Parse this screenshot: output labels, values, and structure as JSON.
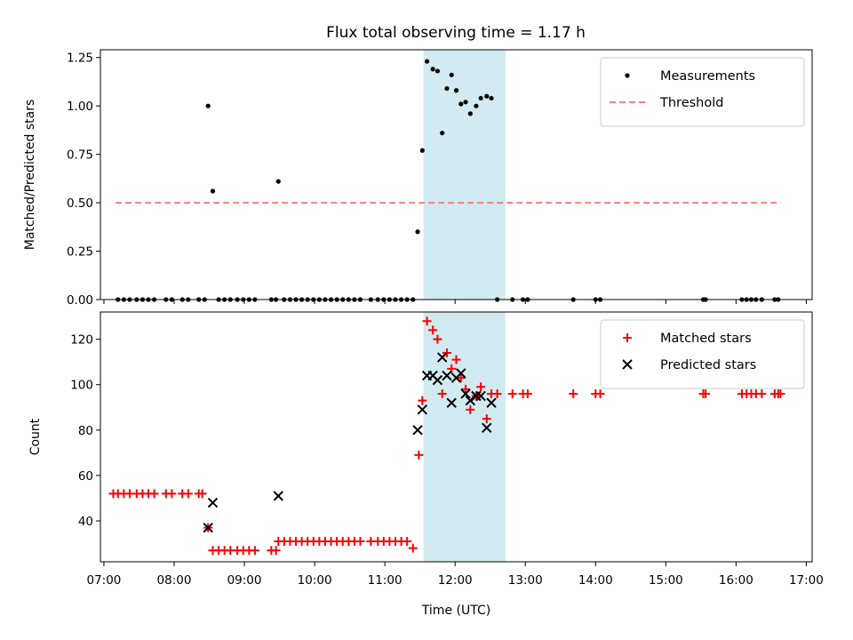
{
  "chart_data": [
    {
      "type": "scatter",
      "title": "Flux total observing time = 1.17 h",
      "xlabel": "",
      "ylabel": "Matched/Predicted stars",
      "ylim": [
        0,
        1.29
      ],
      "yticks": [
        "0.00",
        "0.25",
        "0.50",
        "0.75",
        "1.00",
        "1.25"
      ],
      "ytick_values": [
        0,
        0.25,
        0.5,
        0.75,
        1.0,
        1.25
      ],
      "shaded_region": {
        "x": [
          "11:33",
          "12:43"
        ],
        "color": "#add8e6"
      },
      "legend": {
        "placement": "top-right",
        "entries": [
          "Measurements",
          "Threshold"
        ]
      },
      "series": [
        {
          "name": "Measurements",
          "marker": "dot",
          "color": "#000000",
          "points": [
            [
              "07:12",
              0
            ],
            [
              "07:17",
              0
            ],
            [
              "07:22",
              0
            ],
            [
              "07:28",
              0
            ],
            [
              "07:33",
              0
            ],
            [
              "07:38",
              0
            ],
            [
              "07:43",
              0
            ],
            [
              "07:53",
              0
            ],
            [
              "07:58",
              0
            ],
            [
              "08:07",
              0
            ],
            [
              "08:12",
              0
            ],
            [
              "08:21",
              0
            ],
            [
              "08:26",
              0
            ],
            [
              "08:29",
              1.0
            ],
            [
              "08:33",
              0.56
            ],
            [
              "08:38",
              0
            ],
            [
              "08:43",
              0
            ],
            [
              "08:48",
              0
            ],
            [
              "08:54",
              0
            ],
            [
              "08:59",
              0
            ],
            [
              "09:04",
              0
            ],
            [
              "09:09",
              0
            ],
            [
              "09:23",
              0
            ],
            [
              "09:27",
              0
            ],
            [
              "09:29",
              0.61
            ],
            [
              "09:34",
              0
            ],
            [
              "09:39",
              0
            ],
            [
              "09:44",
              0
            ],
            [
              "09:49",
              0
            ],
            [
              "09:54",
              0
            ],
            [
              "09:59",
              0
            ],
            [
              "10:04",
              0
            ],
            [
              "10:09",
              0
            ],
            [
              "10:14",
              0
            ],
            [
              "10:19",
              0
            ],
            [
              "10:24",
              0
            ],
            [
              "10:29",
              0
            ],
            [
              "10:34",
              0
            ],
            [
              "10:39",
              0
            ],
            [
              "10:48",
              0
            ],
            [
              "10:54",
              0
            ],
            [
              "10:59",
              0
            ],
            [
              "11:04",
              0
            ],
            [
              "11:09",
              0
            ],
            [
              "11:14",
              0
            ],
            [
              "11:19",
              0
            ],
            [
              "11:24",
              0
            ],
            [
              "11:28",
              0.35
            ],
            [
              "11:32",
              0.77
            ],
            [
              "11:36",
              1.23
            ],
            [
              "11:41",
              1.19
            ],
            [
              "11:45",
              1.18
            ],
            [
              "11:49",
              0.86
            ],
            [
              "11:53",
              1.09
            ],
            [
              "11:57",
              1.16
            ],
            [
              "12:01",
              1.08
            ],
            [
              "12:05",
              1.01
            ],
            [
              "12:09",
              1.02
            ],
            [
              "12:13",
              0.96
            ],
            [
              "12:18",
              1.0
            ],
            [
              "12:22",
              1.04
            ],
            [
              "12:27",
              1.05
            ],
            [
              "12:31",
              1.04
            ],
            [
              "12:36",
              0
            ],
            [
              "12:49",
              0
            ],
            [
              "12:58",
              0
            ],
            [
              "13:02",
              0
            ],
            [
              "13:41",
              0
            ],
            [
              "14:00",
              0
            ],
            [
              "14:04",
              0
            ],
            [
              "15:32",
              0
            ],
            [
              "15:34",
              0
            ],
            [
              "16:05",
              0
            ],
            [
              "16:09",
              0
            ],
            [
              "16:13",
              0
            ],
            [
              "16:17",
              0
            ],
            [
              "16:22",
              0
            ],
            [
              "16:33",
              0
            ],
            [
              "16:36",
              0
            ]
          ]
        },
        {
          "name": "Threshold",
          "marker": "dashed-line",
          "color": "#ff7f7f",
          "points": [
            [
              "07:10",
              0.5
            ],
            [
              "16:38",
              0.5
            ]
          ]
        }
      ]
    },
    {
      "type": "scatter",
      "title": "",
      "xlabel": "Time (UTC)",
      "ylabel": "Count",
      "ylim": [
        22,
        132
      ],
      "yticks": [
        "40",
        "60",
        "80",
        "100",
        "120"
      ],
      "ytick_values": [
        40,
        60,
        80,
        100,
        120
      ],
      "xticks": [
        "07:00",
        "08:00",
        "09:00",
        "10:00",
        "11:00",
        "12:00",
        "13:00",
        "14:00",
        "15:00",
        "16:00",
        "17:00"
      ],
      "xlim": [
        "06:57",
        "17:05"
      ],
      "shaded_region": {
        "x": [
          "11:33",
          "12:43"
        ],
        "color": "#add8e6"
      },
      "legend": {
        "placement": "top-right",
        "entries": [
          "Matched stars",
          "Predicted stars"
        ]
      },
      "series": [
        {
          "name": "Matched stars",
          "marker": "plus",
          "color": "#ff0000",
          "points": [
            [
              "07:08",
              52
            ],
            [
              "07:12",
              52
            ],
            [
              "07:17",
              52
            ],
            [
              "07:22",
              52
            ],
            [
              "07:28",
              52
            ],
            [
              "07:33",
              52
            ],
            [
              "07:38",
              52
            ],
            [
              "07:43",
              52
            ],
            [
              "07:53",
              52
            ],
            [
              "07:58",
              52
            ],
            [
              "08:07",
              52
            ],
            [
              "08:12",
              52
            ],
            [
              "08:21",
              52
            ],
            [
              "08:24",
              52
            ],
            [
              "08:29",
              37
            ],
            [
              "08:33",
              27
            ],
            [
              "08:38",
              27
            ],
            [
              "08:43",
              27
            ],
            [
              "08:48",
              27
            ],
            [
              "08:54",
              27
            ],
            [
              "08:59",
              27
            ],
            [
              "09:04",
              27
            ],
            [
              "09:09",
              27
            ],
            [
              "09:23",
              27
            ],
            [
              "09:27",
              27
            ],
            [
              "09:29",
              31
            ],
            [
              "09:34",
              31
            ],
            [
              "09:39",
              31
            ],
            [
              "09:44",
              31
            ],
            [
              "09:49",
              31
            ],
            [
              "09:54",
              31
            ],
            [
              "09:59",
              31
            ],
            [
              "10:04",
              31
            ],
            [
              "10:09",
              31
            ],
            [
              "10:14",
              31
            ],
            [
              "10:19",
              31
            ],
            [
              "10:24",
              31
            ],
            [
              "10:29",
              31
            ],
            [
              "10:34",
              31
            ],
            [
              "10:39",
              31
            ],
            [
              "10:48",
              31
            ],
            [
              "10:54",
              31
            ],
            [
              "10:59",
              31
            ],
            [
              "11:04",
              31
            ],
            [
              "11:09",
              31
            ],
            [
              "11:14",
              31
            ],
            [
              "11:19",
              31
            ],
            [
              "11:24",
              28
            ],
            [
              "11:29",
              69
            ],
            [
              "11:32",
              93
            ],
            [
              "11:36",
              128
            ],
            [
              "11:41",
              124
            ],
            [
              "11:45",
              120
            ],
            [
              "11:49",
              96
            ],
            [
              "11:53",
              114
            ],
            [
              "11:57",
              107
            ],
            [
              "12:01",
              111
            ],
            [
              "12:05",
              103
            ],
            [
              "12:09",
              98
            ],
            [
              "12:13",
              89
            ],
            [
              "12:18",
              95
            ],
            [
              "12:22",
              99
            ],
            [
              "12:27",
              85
            ],
            [
              "12:31",
              96
            ],
            [
              "12:36",
              96
            ],
            [
              "12:49",
              96
            ],
            [
              "12:58",
              96
            ],
            [
              "13:02",
              96
            ],
            [
              "13:41",
              96
            ],
            [
              "14:00",
              96
            ],
            [
              "14:04",
              96
            ],
            [
              "15:32",
              96
            ],
            [
              "15:34",
              96
            ],
            [
              "16:05",
              96
            ],
            [
              "16:09",
              96
            ],
            [
              "16:13",
              96
            ],
            [
              "16:17",
              96
            ],
            [
              "16:22",
              96
            ],
            [
              "16:33",
              96
            ],
            [
              "16:36",
              96
            ],
            [
              "16:38",
              96
            ]
          ]
        },
        {
          "name": "Predicted stars",
          "marker": "x",
          "color": "#000000",
          "points": [
            [
              "08:29",
              37
            ],
            [
              "08:33",
              48
            ],
            [
              "09:29",
              51
            ],
            [
              "11:28",
              80
            ],
            [
              "11:32",
              89
            ],
            [
              "11:36",
              104
            ],
            [
              "11:41",
              104
            ],
            [
              "11:45",
              102
            ],
            [
              "11:49",
              112
            ],
            [
              "11:53",
              104
            ],
            [
              "11:57",
              92
            ],
            [
              "12:01",
              103
            ],
            [
              "12:05",
              105
            ],
            [
              "12:09",
              96
            ],
            [
              "12:13",
              93
            ],
            [
              "12:18",
              95
            ],
            [
              "12:22",
              95
            ],
            [
              "12:27",
              81
            ],
            [
              "12:31",
              92
            ]
          ]
        }
      ]
    }
  ]
}
